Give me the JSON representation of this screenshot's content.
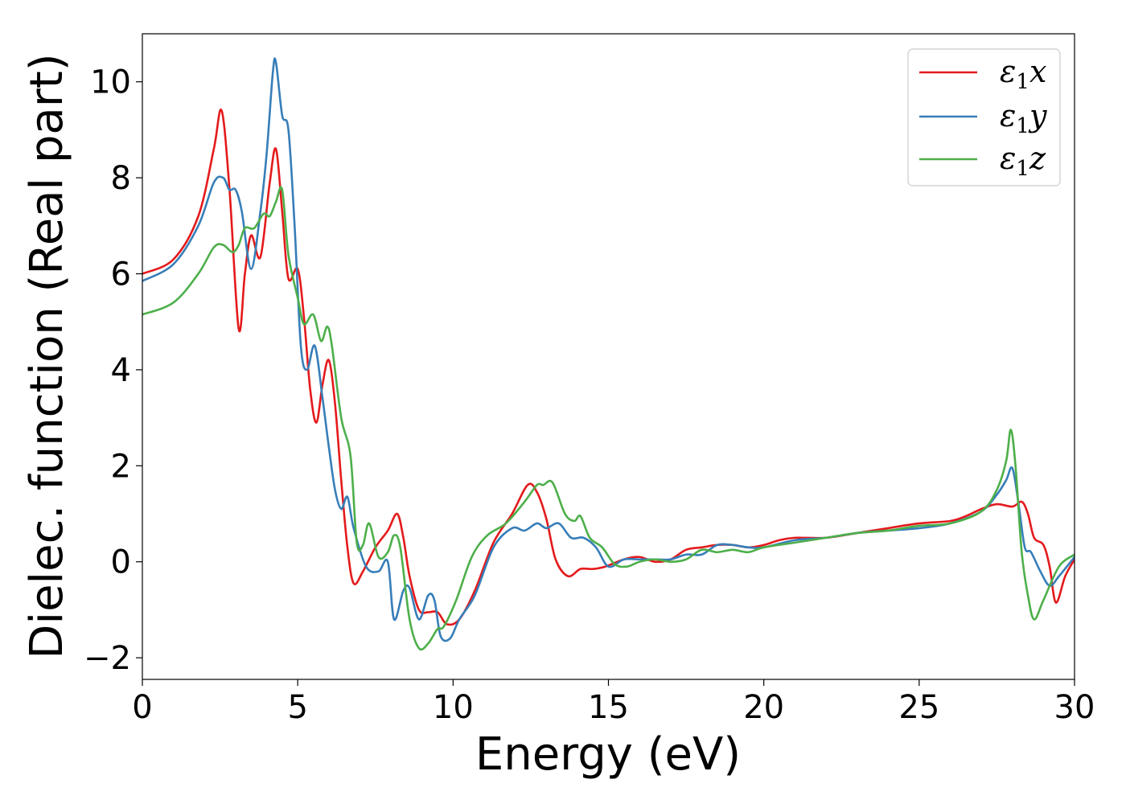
{
  "chart_data": {
    "type": "line",
    "xlabel": "Energy (eV)",
    "ylabel": "Dielec. function (Real part)",
    "xlim": [
      0,
      30
    ],
    "ylim": [
      -2.45,
      11.0
    ],
    "xticks": [
      0,
      5,
      10,
      15,
      20,
      25,
      30
    ],
    "xtick_labels": [
      "0",
      "5",
      "10",
      "15",
      "20",
      "25",
      "30"
    ],
    "yticks": [
      -2,
      0,
      2,
      4,
      6,
      8,
      10
    ],
    "ytick_labels": [
      "−2",
      "0",
      "2",
      "4",
      "6",
      "8",
      "10"
    ],
    "grid": false,
    "legend_position": "top-right",
    "series": [
      {
        "name": "ε₁x",
        "name_base": "ε",
        "name_sub": "1",
        "name_suffix": "x",
        "color": "#e41a1c",
        "x": [
          0,
          1,
          1.8,
          2.3,
          2.55,
          2.8,
          3.1,
          3.3,
          3.5,
          3.8,
          4.1,
          4.3,
          4.5,
          4.7,
          5.0,
          5.2,
          5.4,
          5.6,
          5.8,
          6.0,
          6.2,
          6.4,
          6.6,
          6.8,
          7.1,
          7.5,
          7.9,
          8.2,
          8.4,
          8.6,
          8.9,
          9.2,
          9.5,
          9.8,
          10.2,
          10.7,
          11.3,
          11.9,
          12.4,
          12.7,
          13.0,
          13.3,
          13.7,
          14.1,
          14.5,
          14.9,
          15.5,
          16.0,
          16.5,
          17.0,
          17.5,
          18.0,
          18.5,
          19.0,
          19.5,
          20.0,
          20.5,
          21.0,
          22.0,
          23.0,
          24.0,
          25.0,
          26.0,
          26.5,
          27.0,
          27.5,
          28.0,
          28.3,
          28.5,
          28.7,
          29.0,
          29.2,
          29.4,
          29.7,
          30.0
        ],
        "y": [
          6.0,
          6.3,
          7.2,
          8.6,
          9.4,
          7.8,
          4.85,
          6.0,
          6.8,
          6.35,
          7.9,
          8.6,
          7.3,
          5.9,
          6.1,
          5.1,
          3.6,
          2.9,
          3.7,
          4.2,
          3.3,
          1.7,
          0.3,
          -0.45,
          -0.2,
          0.3,
          0.65,
          1.0,
          0.5,
          -0.3,
          -1.0,
          -1.05,
          -1.05,
          -1.3,
          -1.2,
          -0.6,
          0.4,
          1.0,
          1.6,
          1.45,
          0.9,
          0.05,
          -0.3,
          -0.15,
          -0.15,
          -0.1,
          0.05,
          0.1,
          0.0,
          0.05,
          0.25,
          0.3,
          0.35,
          0.35,
          0.3,
          0.35,
          0.45,
          0.5,
          0.5,
          0.6,
          0.7,
          0.8,
          0.85,
          0.95,
          1.1,
          1.2,
          1.15,
          1.25,
          1.0,
          0.5,
          0.35,
          -0.1,
          -0.85,
          -0.3,
          0.05
        ]
      },
      {
        "name": "ε₁y",
        "name_base": "ε",
        "name_sub": "1",
        "name_suffix": "y",
        "color": "#377eb8",
        "x": [
          0,
          1,
          1.8,
          2.3,
          2.6,
          2.8,
          3.0,
          3.2,
          3.5,
          3.8,
          4.0,
          4.2,
          4.3,
          4.5,
          4.7,
          4.9,
          5.1,
          5.3,
          5.55,
          5.8,
          6.0,
          6.2,
          6.4,
          6.6,
          6.8,
          7.2,
          7.6,
          7.9,
          8.1,
          8.4,
          8.6,
          8.9,
          9.2,
          9.4,
          9.6,
          9.9,
          10.2,
          10.7,
          11.3,
          11.9,
          12.3,
          12.7,
          13.0,
          13.4,
          13.8,
          14.2,
          14.6,
          15.0,
          15.5,
          16.0,
          16.5,
          17.0,
          17.5,
          18.0,
          18.5,
          19.0,
          19.5,
          20.0,
          21.0,
          22.0,
          23.0,
          24.0,
          25.0,
          26.0,
          27.0,
          27.5,
          27.8,
          28.0,
          28.2,
          28.4,
          28.6,
          28.9,
          29.2,
          29.5,
          30.0
        ],
        "y": [
          5.85,
          6.2,
          7.0,
          7.9,
          8.0,
          7.75,
          7.75,
          7.3,
          6.1,
          7.3,
          8.5,
          10.2,
          10.4,
          9.3,
          9.0,
          7.0,
          4.5,
          4.0,
          4.5,
          3.4,
          2.4,
          1.5,
          1.1,
          1.35,
          0.7,
          -0.1,
          -0.2,
          0.0,
          -1.2,
          -0.6,
          -0.55,
          -1.2,
          -0.7,
          -0.8,
          -1.55,
          -1.6,
          -1.2,
          -0.7,
          0.3,
          0.7,
          0.65,
          0.8,
          0.7,
          0.8,
          0.5,
          0.5,
          0.3,
          -0.1,
          0.05,
          0.05,
          0.05,
          0.05,
          0.15,
          0.15,
          0.35,
          0.35,
          0.3,
          0.3,
          0.45,
          0.5,
          0.6,
          0.65,
          0.7,
          0.8,
          1.05,
          1.4,
          1.7,
          1.95,
          1.2,
          0.3,
          0.2,
          -0.2,
          -0.5,
          -0.3,
          0.1
        ]
      },
      {
        "name": "ε₁z",
        "name_base": "ε",
        "name_sub": "1",
        "name_suffix": "z",
        "color": "#4daf4a",
        "x": [
          0,
          1,
          1.8,
          2.3,
          2.6,
          2.9,
          3.1,
          3.3,
          3.6,
          3.9,
          4.1,
          4.3,
          4.5,
          4.7,
          5.0,
          5.2,
          5.5,
          5.75,
          5.95,
          6.1,
          6.4,
          6.7,
          6.9,
          7.1,
          7.3,
          7.6,
          7.9,
          8.1,
          8.3,
          8.6,
          8.9,
          9.2,
          9.5,
          9.7,
          10.1,
          10.6,
          11.1,
          11.7,
          12.3,
          12.7,
          12.9,
          13.2,
          13.6,
          13.9,
          14.1,
          14.4,
          14.8,
          15.2,
          15.6,
          16.0,
          16.5,
          17.0,
          17.5,
          18.0,
          18.5,
          19.0,
          19.5,
          20.0,
          21.0,
          22.0,
          23.0,
          24.0,
          25.0,
          26.0,
          27.0,
          27.5,
          27.8,
          27.95,
          28.1,
          28.3,
          28.5,
          28.7,
          29.0,
          29.5,
          30.0
        ],
        "y": [
          5.15,
          5.4,
          6.0,
          6.55,
          6.6,
          6.45,
          6.6,
          6.95,
          6.95,
          7.25,
          7.2,
          7.5,
          7.75,
          6.4,
          5.5,
          4.95,
          5.15,
          4.6,
          4.9,
          4.5,
          3.0,
          2.2,
          0.4,
          0.35,
          0.8,
          0.1,
          0.2,
          0.55,
          0.3,
          -1.2,
          -1.8,
          -1.7,
          -1.4,
          -1.35,
          -0.8,
          0.1,
          0.55,
          0.8,
          1.25,
          1.6,
          1.6,
          1.65,
          1.0,
          0.85,
          0.95,
          0.5,
          0.3,
          -0.05,
          -0.1,
          0.0,
          0.05,
          0.0,
          0.05,
          0.25,
          0.2,
          0.25,
          0.2,
          0.3,
          0.4,
          0.5,
          0.6,
          0.65,
          0.75,
          0.8,
          1.05,
          1.5,
          2.1,
          2.75,
          2.0,
          0.2,
          -0.7,
          -1.2,
          -0.8,
          -0.1,
          0.15
        ]
      }
    ]
  }
}
